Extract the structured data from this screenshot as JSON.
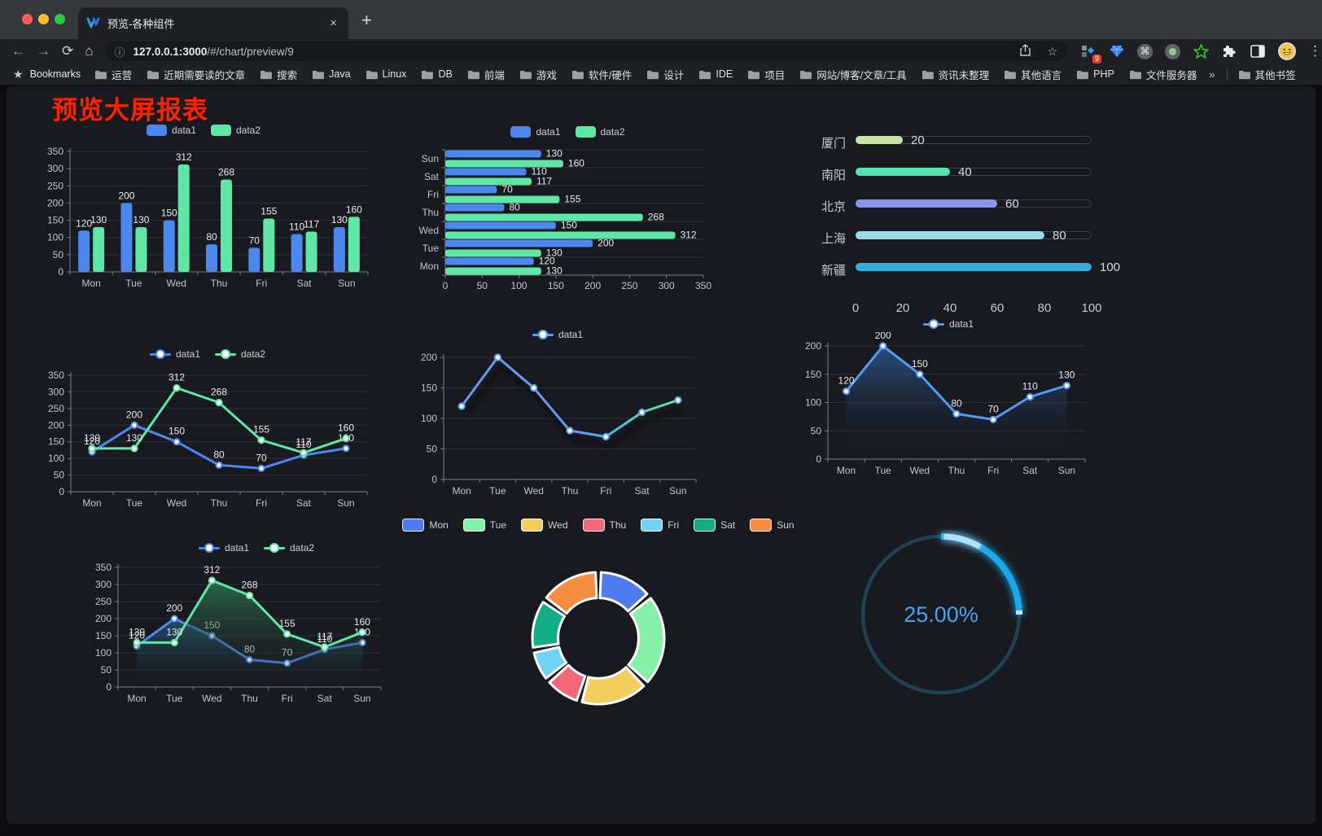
{
  "browser": {
    "traffic_lights": [
      "#ff5f57",
      "#febc2e",
      "#28c840"
    ],
    "tab": {
      "title": "预览-各种组件",
      "close_label": "×",
      "new_tab_label": "+"
    },
    "toolbar": {
      "back_icon": "←",
      "forward_icon": "→",
      "reload_icon": "⟳",
      "home_icon": "⌂",
      "info_icon": "ⓘ",
      "url_host": "127.0.0.1:3000",
      "url_path": "/#/chart/preview/9",
      "star_icon": "☆",
      "extension_badge": "9",
      "command_icon": "⌘",
      "menu_icon": "⋮"
    },
    "bookmarks_bar": {
      "star_icon": "★",
      "label": "Bookmarks",
      "items": [
        "运营",
        "近期需要读的文章",
        "搜索",
        "Java",
        "Linux",
        "DB",
        "前端",
        "游戏",
        "软件/硬件",
        "设计",
        "IDE",
        "项目",
        "网站/博客/文章/工具",
        "资讯未整理",
        "其他语言",
        "PHP",
        "文件服务器"
      ],
      "overflow": "»",
      "other_bookmarks": "其他书签"
    }
  },
  "page": {
    "title": "预览大屏报表",
    "title_color": "#ff2200"
  },
  "chart_data": [
    {
      "id": "bar-vertical",
      "type": "bar",
      "legend_position": "top",
      "grid": true,
      "categories": [
        "Mon",
        "Tue",
        "Wed",
        "Thu",
        "Fri",
        "Sat",
        "Sun"
      ],
      "series": [
        {
          "name": "data1",
          "color": "#4c87f0",
          "values": [
            120,
            200,
            150,
            80,
            70,
            110,
            130
          ]
        },
        {
          "name": "data2",
          "color": "#5fe7a5",
          "values": [
            130,
            130,
            312,
            268,
            155,
            117,
            160
          ]
        }
      ],
      "ylim": [
        0,
        350
      ],
      "yticks": [
        0,
        50,
        100,
        150,
        200,
        250,
        300,
        350
      ]
    },
    {
      "id": "bar-horizontal",
      "type": "bar",
      "orientation": "horizontal",
      "legend_position": "top",
      "grid": true,
      "categories": [
        "Mon",
        "Tue",
        "Wed",
        "Thu",
        "Fri",
        "Sat",
        "Sun"
      ],
      "series": [
        {
          "name": "data1",
          "color": "#4c87f0",
          "values": [
            120,
            200,
            150,
            80,
            70,
            110,
            130
          ]
        },
        {
          "name": "data2",
          "color": "#5fe7a5",
          "values": [
            130,
            130,
            312,
            268,
            155,
            117,
            160
          ]
        }
      ],
      "xlim": [
        0,
        350
      ],
      "xticks": [
        0,
        50,
        100,
        150,
        200,
        250,
        300,
        350
      ]
    },
    {
      "id": "progress-bars",
      "type": "bar",
      "orientation": "horizontal",
      "style": "progress",
      "items": [
        {
          "label": "厦门",
          "value": 20,
          "color": "#c3e6a1"
        },
        {
          "label": "南阳",
          "value": 40,
          "color": "#56e3ae"
        },
        {
          "label": "北京",
          "value": 60,
          "color": "#8e92ef"
        },
        {
          "label": "上海",
          "value": 80,
          "color": "#99dbe8"
        },
        {
          "label": "新疆",
          "value": 100,
          "color": "#32abdf"
        }
      ],
      "xlim": [
        0,
        100
      ],
      "xticks": [
        0,
        20,
        40,
        60,
        80,
        100
      ]
    },
    {
      "id": "line-two-series",
      "type": "line",
      "legend_position": "top",
      "labels": true,
      "grid": true,
      "categories": [
        "Mon",
        "Tue",
        "Wed",
        "Thu",
        "Fri",
        "Sat",
        "Sun"
      ],
      "series": [
        {
          "name": "data1",
          "color": "#4c87f0",
          "values": [
            120,
            200,
            150,
            80,
            70,
            110,
            130
          ]
        },
        {
          "name": "data2",
          "color": "#5fe7a5",
          "values": [
            130,
            130,
            312,
            268,
            155,
            117,
            160
          ]
        }
      ],
      "ylim": [
        0,
        350
      ],
      "yticks": [
        0,
        50,
        100,
        150,
        200,
        250,
        300,
        350
      ]
    },
    {
      "id": "line-gradient",
      "type": "line",
      "legend_position": "top",
      "labels": false,
      "grid": true,
      "categories": [
        "Mon",
        "Tue",
        "Wed",
        "Thu",
        "Fri",
        "Sat",
        "Sun"
      ],
      "series": [
        {
          "name": "data1",
          "color": "#5f9df6",
          "gradient": [
            "#5f9df6",
            "#5f9df6",
            "#57c8c2",
            "#5fe7a5"
          ],
          "values": [
            120,
            200,
            150,
            80,
            70,
            110,
            130
          ]
        }
      ],
      "ylim": [
        0,
        200
      ],
      "yticks": [
        0,
        50,
        100,
        150,
        200
      ]
    },
    {
      "id": "line-area-single",
      "type": "line",
      "legend_position": "top",
      "labels": true,
      "area": true,
      "grid": true,
      "categories": [
        "Mon",
        "Tue",
        "Wed",
        "Thu",
        "Fri",
        "Sat",
        "Sun"
      ],
      "series": [
        {
          "name": "data1",
          "color": "#529af5",
          "area_from": "rgba(46,93,150,0.80)",
          "area_to": "rgba(20,28,40,0)",
          "values": [
            120,
            200,
            150,
            80,
            70,
            110,
            130
          ]
        }
      ],
      "ylim": [
        0,
        200
      ],
      "yticks": [
        0,
        50,
        100,
        150,
        200
      ]
    },
    {
      "id": "line-area-two",
      "type": "line",
      "legend_position": "top",
      "labels": true,
      "area": true,
      "grid": true,
      "categories": [
        "Mon",
        "Tue",
        "Wed",
        "Thu",
        "Fri",
        "Sat",
        "Sun"
      ],
      "series": [
        {
          "name": "data1",
          "color": "#4c87f0",
          "area_from": "rgba(44,93,143,0.75)",
          "area_to": "rgba(25,26,32,0.05)",
          "values": [
            120,
            200,
            150,
            80,
            70,
            110,
            130
          ]
        },
        {
          "name": "data2",
          "color": "#5fe7a5",
          "area_from": "rgba(47,125,87,0.80)",
          "area_to": "rgba(25,26,32,0.05)",
          "values": [
            130,
            130,
            312,
            268,
            155,
            117,
            160
          ]
        }
      ],
      "ylim": [
        0,
        350
      ],
      "yticks": [
        0,
        50,
        100,
        150,
        200,
        250,
        300,
        350
      ]
    },
    {
      "id": "donut",
      "type": "pie",
      "legend_position": "top",
      "inner_radius_ratio": 0.61,
      "items": [
        {
          "label": "Mon",
          "value": 120,
          "color": "#4e7cf0"
        },
        {
          "label": "Tue",
          "value": 200,
          "color": "#84f0a8"
        },
        {
          "label": "Wed",
          "value": 150,
          "color": "#f2cf5c"
        },
        {
          "label": "Thu",
          "value": 80,
          "color": "#f5687a"
        },
        {
          "label": "Fri",
          "value": 70,
          "color": "#70d2f5"
        },
        {
          "label": "Sat",
          "value": 110,
          "color": "#0fae84"
        },
        {
          "label": "Sun",
          "value": 130,
          "color": "#f58c3f"
        }
      ]
    },
    {
      "id": "gauge",
      "type": "gauge",
      "value_percent": 25,
      "display": "25.00%",
      "progress_color": "#1fa6ec",
      "track_color": "#1d4355",
      "text_color": "#42a5f2"
    }
  ],
  "chart_style": {
    "axis_label_color": "#c2c6cd",
    "grid_color": "#2e3138",
    "axis_color": "#7a7f88",
    "value_label_color": "#e9ebee"
  }
}
